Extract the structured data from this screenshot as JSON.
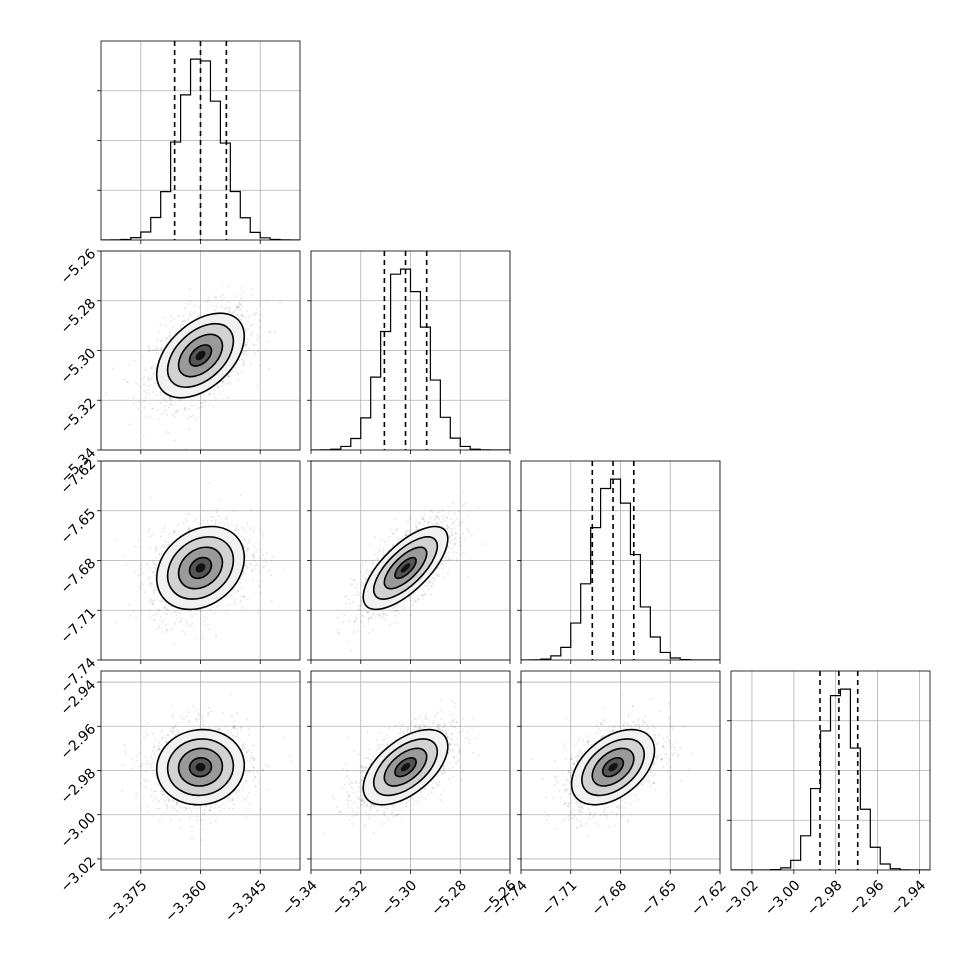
{
  "chart_data": {
    "type": "corner",
    "title": "",
    "parameters": [
      {
        "name": "",
        "range": [
          -3.385,
          -3.335
        ],
        "ticks": [
          -3.375,
          -3.36,
          -3.345
        ],
        "tick_labels": [
          "−3.375",
          "−3.360",
          "−3.345"
        ],
        "mean": -3.36,
        "sigma": 0.0055,
        "quantiles": [
          -3.3665,
          -3.36,
          -3.3535
        ]
      },
      {
        "name": "",
        "range": [
          -5.34,
          -5.26
        ],
        "ticks": [
          -5.34,
          -5.32,
          -5.3,
          -5.28,
          -5.26
        ],
        "tick_labels": [
          "−5.34",
          "−5.32",
          "−5.30",
          "−5.28",
          "−5.26"
        ],
        "mean": -5.302,
        "sigma": 0.0085,
        "quantiles": [
          -5.3105,
          -5.302,
          -5.2935
        ]
      },
      {
        "name": "",
        "range": [
          -7.74,
          -7.62
        ],
        "ticks": [
          -7.74,
          -7.71,
          -7.68,
          -7.65,
          -7.62
        ],
        "tick_labels": [
          "−7.74",
          "−7.71",
          "−7.68",
          "−7.65",
          "−7.62"
        ],
        "mean": -7.6845,
        "sigma": 0.0125,
        "quantiles": [
          -7.697,
          -7.6845,
          -7.672
        ]
      },
      {
        "name": "",
        "range": [
          -3.03,
          -2.935
        ],
        "ticks": [
          -3.02,
          -3.0,
          -2.98,
          -2.96,
          -2.94
        ],
        "tick_labels": [
          "−3.02",
          "−3.00",
          "−2.98",
          "−2.96",
          "−2.94"
        ],
        "mean": -2.9785,
        "sigma": 0.0085,
        "quantiles": [
          -2.9875,
          -2.9785,
          -2.9695
        ]
      }
    ],
    "y_ranges": [
      null,
      [
        -5.34,
        -5.26
      ],
      [
        -7.74,
        -7.62
      ],
      [
        -3.025,
        -2.935
      ]
    ],
    "y_ticks": [
      null,
      {
        "ticks": [
          -5.34,
          -5.32,
          -5.3,
          -5.28,
          -5.26
        ],
        "tick_labels": [
          "−5.34",
          "−5.32",
          "−5.30",
          "−5.28",
          "−5.26"
        ]
      },
      {
        "ticks": [
          -7.74,
          -7.71,
          -7.68,
          -7.65,
          -7.62
        ],
        "tick_labels": [
          "−7.74",
          "−7.71",
          "−7.68",
          "−7.65",
          "−7.62"
        ]
      },
      {
        "ticks": [
          -3.02,
          -3.0,
          -2.98,
          -2.96,
          -2.94
        ],
        "tick_labels": [
          "−3.02",
          "−3.00",
          "−2.98",
          "−2.96",
          "−2.94"
        ]
      }
    ],
    "correlations": [
      [
        1.0,
        0.45,
        0.25,
        0.05
      ],
      [
        0.45,
        1.0,
        0.7,
        0.55
      ],
      [
        0.25,
        0.7,
        1.0,
        0.45
      ],
      [
        0.05,
        0.55,
        0.45,
        1.0
      ]
    ],
    "histogram_bins": 20,
    "contour_levels_sigma": [
      0.5,
      1.0,
      1.5,
      2.0
    ],
    "grid": true,
    "colors": {
      "points": "#000000",
      "lines": "#000000",
      "grid": "#b0b0b0"
    }
  }
}
